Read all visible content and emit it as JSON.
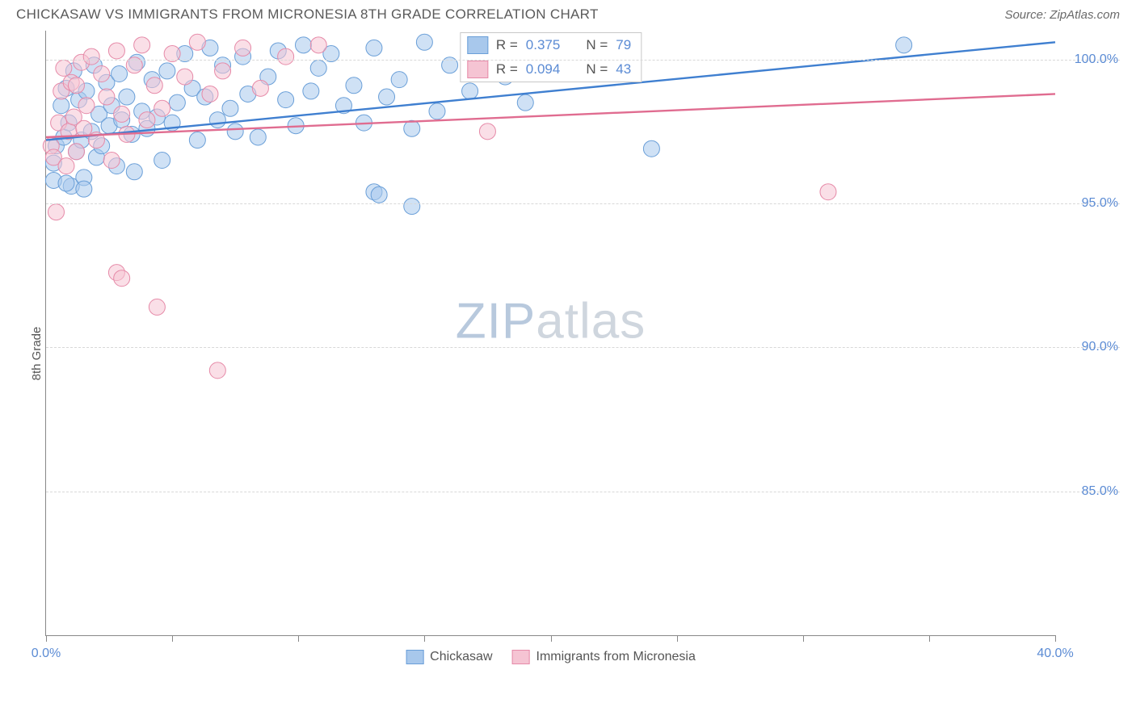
{
  "title": "CHICKASAW VS IMMIGRANTS FROM MICRONESIA 8TH GRADE CORRELATION CHART",
  "source_label": "Source: ZipAtlas.com",
  "watermark": {
    "zip": "ZIP",
    "atlas": "atlas"
  },
  "ylabel": "8th Grade",
  "chart": {
    "type": "scatter",
    "x_domain": [
      0,
      40
    ],
    "y_domain": [
      80,
      101
    ],
    "x_ticks": [
      0,
      40
    ],
    "x_tick_labels": [
      "0.0%",
      "40.0%"
    ],
    "x_minor_ticks": [
      5,
      10,
      15,
      20,
      25,
      30,
      35
    ],
    "y_ticks": [
      85,
      90,
      95,
      100
    ],
    "y_tick_labels": [
      "85.0%",
      "90.0%",
      "95.0%",
      "100.0%"
    ],
    "background_color": "#ffffff",
    "grid_color": "#d8d8d8",
    "axis_color": "#888888",
    "tick_label_color": "#5b8bd4",
    "series": [
      {
        "name": "Chickasaw",
        "fill": "#a8c8ec",
        "stroke": "#6a9fd8",
        "fill_opacity": 0.55,
        "marker_radius": 10,
        "R": 0.375,
        "N": 79,
        "trend": {
          "x1": 0,
          "y1": 97.2,
          "x2": 40,
          "y2": 100.6,
          "color": "#3f7fd0",
          "width": 2.4
        },
        "points": [
          [
            0.3,
            96.4
          ],
          [
            0.4,
            97.0
          ],
          [
            0.6,
            98.4
          ],
          [
            0.7,
            97.3
          ],
          [
            0.8,
            99.0
          ],
          [
            0.9,
            97.8
          ],
          [
            1.0,
            95.6
          ],
          [
            1.1,
            99.6
          ],
          [
            1.2,
            96.8
          ],
          [
            1.3,
            98.6
          ],
          [
            1.4,
            97.2
          ],
          [
            1.5,
            95.9
          ],
          [
            1.6,
            98.9
          ],
          [
            1.8,
            97.5
          ],
          [
            1.9,
            99.8
          ],
          [
            2.0,
            96.6
          ],
          [
            2.1,
            98.1
          ],
          [
            2.2,
            97.0
          ],
          [
            2.4,
            99.2
          ],
          [
            2.5,
            97.7
          ],
          [
            2.6,
            98.4
          ],
          [
            2.8,
            96.3
          ],
          [
            2.9,
            99.5
          ],
          [
            3.0,
            97.9
          ],
          [
            3.2,
            98.7
          ],
          [
            3.4,
            97.4
          ],
          [
            3.5,
            96.1
          ],
          [
            3.6,
            99.9
          ],
          [
            3.8,
            98.2
          ],
          [
            4.0,
            97.6
          ],
          [
            4.2,
            99.3
          ],
          [
            4.4,
            98.0
          ],
          [
            4.6,
            96.5
          ],
          [
            4.8,
            99.6
          ],
          [
            5.0,
            97.8
          ],
          [
            5.2,
            98.5
          ],
          [
            5.5,
            100.2
          ],
          [
            5.8,
            99.0
          ],
          [
            6.0,
            97.2
          ],
          [
            6.3,
            98.7
          ],
          [
            6.5,
            100.4
          ],
          [
            6.8,
            97.9
          ],
          [
            7.0,
            99.8
          ],
          [
            7.3,
            98.3
          ],
          [
            7.5,
            97.5
          ],
          [
            7.8,
            100.1
          ],
          [
            8.0,
            98.8
          ],
          [
            8.4,
            97.3
          ],
          [
            8.8,
            99.4
          ],
          [
            9.2,
            100.3
          ],
          [
            9.5,
            98.6
          ],
          [
            9.9,
            97.7
          ],
          [
            10.2,
            100.5
          ],
          [
            10.5,
            98.9
          ],
          [
            10.8,
            99.7
          ],
          [
            11.3,
            100.2
          ],
          [
            11.8,
            98.4
          ],
          [
            12.2,
            99.1
          ],
          [
            12.6,
            97.8
          ],
          [
            13.0,
            100.4
          ],
          [
            13.5,
            98.7
          ],
          [
            14.0,
            99.3
          ],
          [
            14.5,
            97.6
          ],
          [
            15.0,
            100.6
          ],
          [
            15.5,
            98.2
          ],
          [
            16.0,
            99.8
          ],
          [
            16.8,
            98.9
          ],
          [
            17.5,
            100.1
          ],
          [
            18.2,
            99.4
          ],
          [
            19.0,
            98.5
          ],
          [
            19.8,
            100.3
          ],
          [
            24.0,
            96.9
          ],
          [
            13.0,
            95.4
          ],
          [
            13.2,
            95.3
          ],
          [
            14.5,
            94.9
          ],
          [
            0.3,
            95.8
          ],
          [
            0.8,
            95.7
          ],
          [
            1.5,
            95.5
          ],
          [
            34.0,
            100.5
          ]
        ]
      },
      {
        "name": "Immigrants from Micronesia",
        "fill": "#f5c4d3",
        "stroke": "#e68aa8",
        "fill_opacity": 0.55,
        "marker_radius": 10,
        "R": 0.094,
        "N": 43,
        "trend": {
          "x1": 0,
          "y1": 97.3,
          "x2": 40,
          "y2": 98.8,
          "color": "#e06c90",
          "width": 2.4
        },
        "points": [
          [
            0.2,
            97.0
          ],
          [
            0.3,
            96.6
          ],
          [
            0.4,
            94.7
          ],
          [
            0.5,
            97.8
          ],
          [
            0.6,
            98.9
          ],
          [
            0.7,
            99.7
          ],
          [
            0.8,
            96.3
          ],
          [
            0.9,
            97.5
          ],
          [
            1.0,
            99.2
          ],
          [
            1.1,
            98.0
          ],
          [
            1.2,
            96.8
          ],
          [
            1.4,
            99.9
          ],
          [
            1.5,
            97.6
          ],
          [
            1.6,
            98.4
          ],
          [
            1.8,
            100.1
          ],
          [
            2.0,
            97.2
          ],
          [
            2.2,
            99.5
          ],
          [
            2.4,
            98.7
          ],
          [
            2.6,
            96.5
          ],
          [
            2.8,
            100.3
          ],
          [
            3.0,
            98.1
          ],
          [
            3.2,
            97.4
          ],
          [
            3.5,
            99.8
          ],
          [
            3.8,
            100.5
          ],
          [
            4.0,
            97.9
          ],
          [
            4.3,
            99.1
          ],
          [
            4.6,
            98.3
          ],
          [
            5.0,
            100.2
          ],
          [
            5.5,
            99.4
          ],
          [
            6.0,
            100.6
          ],
          [
            6.5,
            98.8
          ],
          [
            7.0,
            99.6
          ],
          [
            7.8,
            100.4
          ],
          [
            8.5,
            99.0
          ],
          [
            9.5,
            100.1
          ],
          [
            10.8,
            100.5
          ],
          [
            17.5,
            97.5
          ],
          [
            2.8,
            92.6
          ],
          [
            3.0,
            92.4
          ],
          [
            4.4,
            91.4
          ],
          [
            6.8,
            89.2
          ],
          [
            31.0,
            95.4
          ],
          [
            1.2,
            99.1
          ]
        ]
      }
    ]
  },
  "stats_box_labels": {
    "R_prefix": "R =",
    "N_prefix": "N ="
  },
  "legend_labels": [
    "Chickasaw",
    "Immigrants from Micronesia"
  ]
}
